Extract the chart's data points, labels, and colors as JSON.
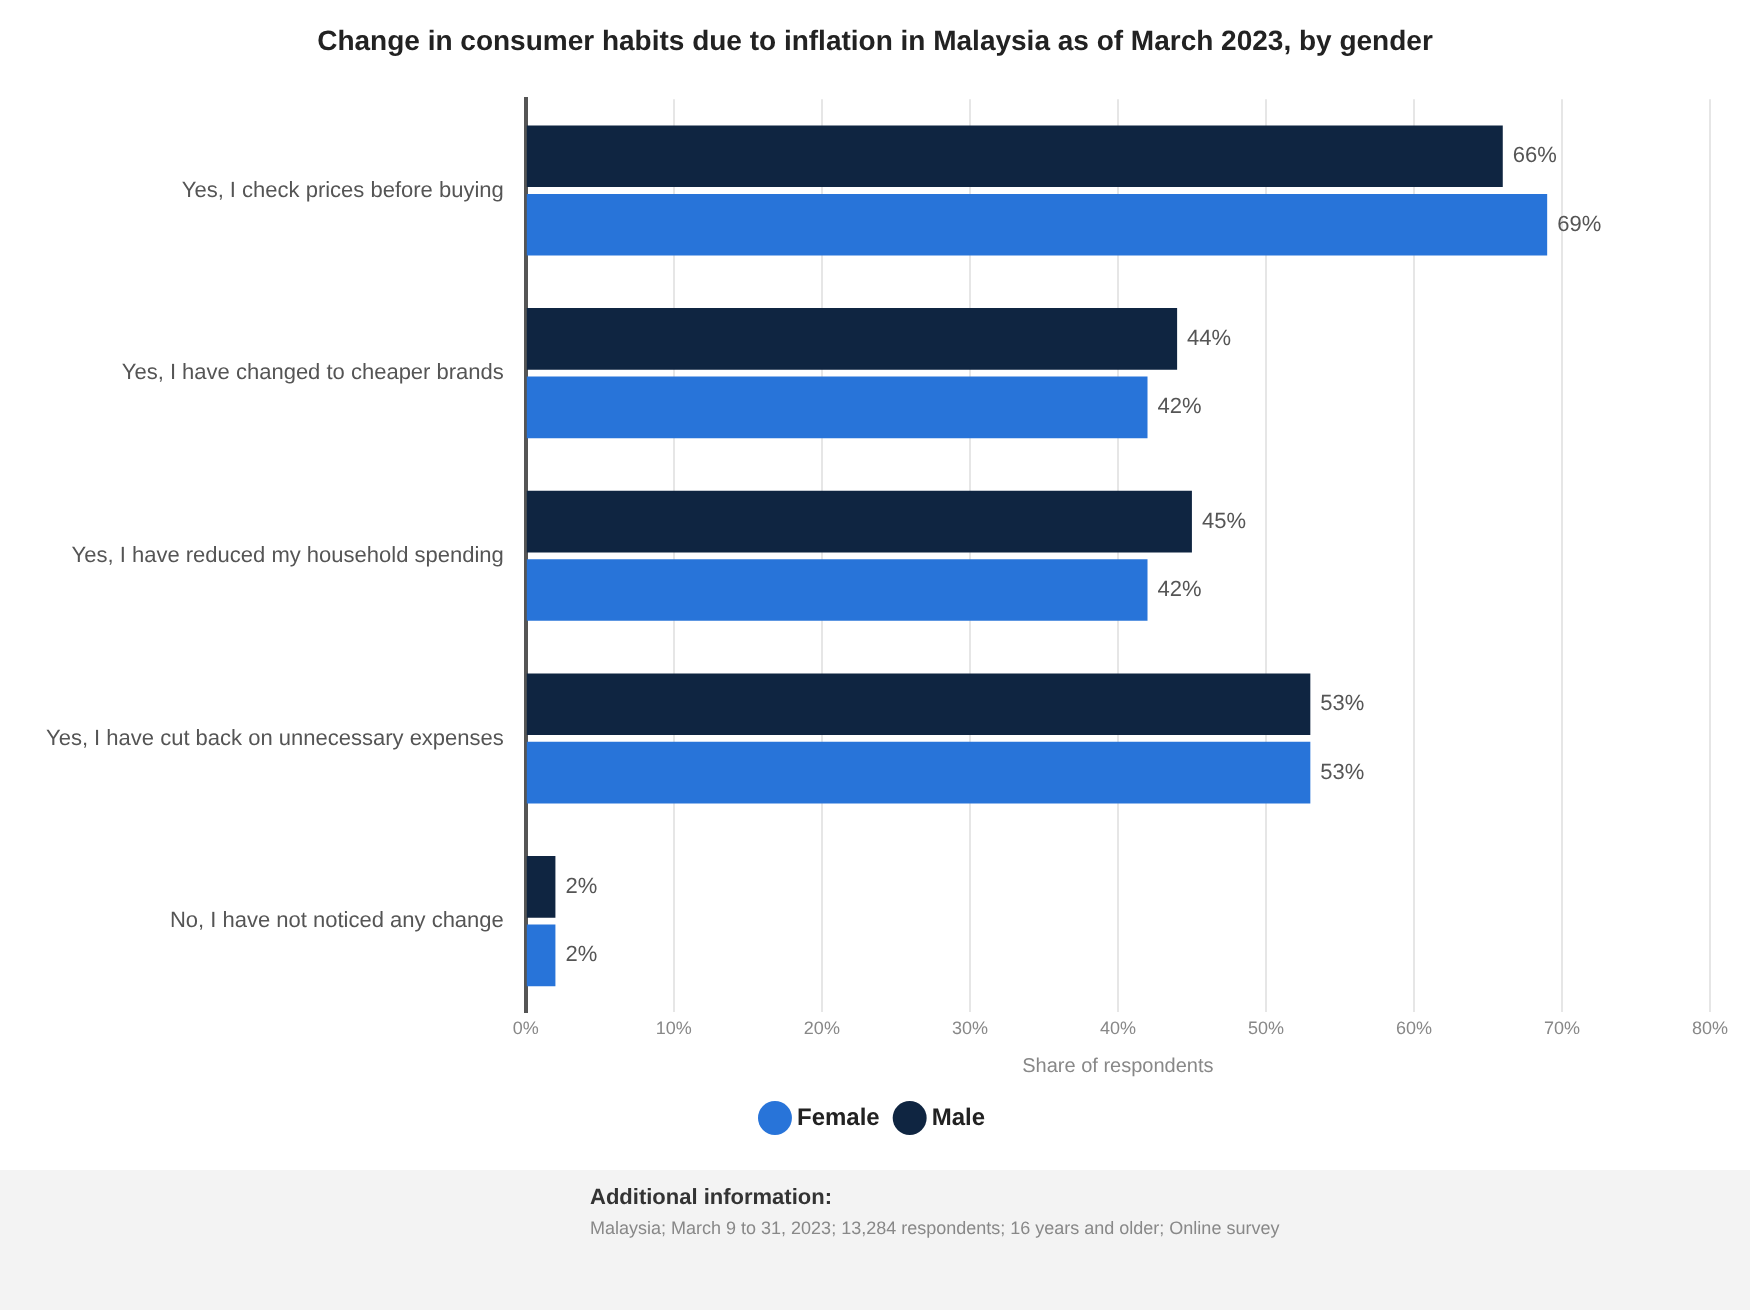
{
  "chart_data": {
    "type": "bar",
    "orientation": "horizontal",
    "title": "Change in consumer habits due to inflation in Malaysia as of March 2023, by gender",
    "xlabel": "Share of respondents",
    "categories": [
      "Yes, I check prices before buying",
      "Yes, I have changed to cheaper brands",
      "Yes, I have reduced my household spending",
      "Yes, I have cut back on unnecessary expenses",
      "No, I have not noticed any change"
    ],
    "series": [
      {
        "name": "Male",
        "color": "#0f2541",
        "values": [
          66,
          44,
          45,
          53,
          2
        ],
        "value_labels": [
          "66%",
          "44%",
          "45%",
          "53%",
          "2%"
        ]
      },
      {
        "name": "Female",
        "color": "#2874d9",
        "values": [
          69,
          42,
          42,
          53,
          2
        ],
        "value_labels": [
          "69%",
          "42%",
          "42%",
          "53%",
          "2%"
        ]
      }
    ],
    "xlim": [
      0,
      80
    ],
    "xticks": [
      {
        "value": 0,
        "label": "0%"
      },
      {
        "value": 10,
        "label": "10%"
      },
      {
        "value": 20,
        "label": "20%"
      },
      {
        "value": 30,
        "label": "30%"
      },
      {
        "value": 40,
        "label": "40%"
      },
      {
        "value": 50,
        "label": "50%"
      },
      {
        "value": 60,
        "label": "60%"
      },
      {
        "value": 70,
        "label": "70%"
      },
      {
        "value": 80,
        "label": "80%"
      }
    ],
    "grid": "x",
    "legend": "bottom",
    "annotations": [
      "Additional information:",
      "Malaysia; March 9 to 31, 2023; 13,284 respondents; 16 years and older; Online survey"
    ]
  }
}
